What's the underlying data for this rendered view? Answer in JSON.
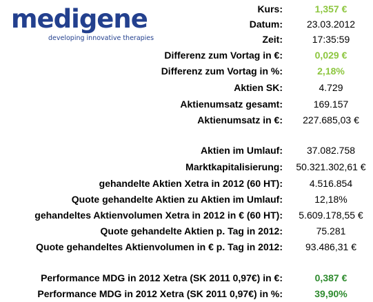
{
  "logo": {
    "name": "medigene",
    "tagline": "developing innovative therapies"
  },
  "colors": {
    "brand": "#23408e",
    "positive_light": "#8dc63f",
    "positive_dark": "#2e8b2e"
  },
  "rows": [
    {
      "label": "Kurs:",
      "value": "1,357 €"
    },
    {
      "label": "Datum:",
      "value": "23.03.2012"
    },
    {
      "label": "Zeit:",
      "value": "17:35:59"
    },
    {
      "label": "Differenz zum Vortag in €:",
      "value": "0,029 €"
    },
    {
      "label": "Differenz zum Vortag in %:",
      "value": "2,18%"
    },
    {
      "label": "Aktien SK:",
      "value": "4.729"
    },
    {
      "label": "Aktienumsatz gesamt:",
      "value": "169.157"
    },
    {
      "label": "Aktienumsatz in €:",
      "value": "227.685,03 €"
    },
    {
      "label": "Aktien im Umlauf:",
      "value": "37.082.758"
    },
    {
      "label": "Marktkapitalisierung:",
      "value": "50.321.302,61 €"
    },
    {
      "label": "gehandelte Aktien Xetra in 2012 (60 HT):",
      "value": "4.516.854"
    },
    {
      "label": "Quote gehandelte Aktien zu Aktien im Umlauf:",
      "value": "12,18%"
    },
    {
      "label": "gehandeltes Aktienvolumen Xetra in 2012 in € (60 HT):",
      "value": "5.609.178,55 €"
    },
    {
      "label": "Quote gehandelte Aktien p. Tag in 2012:",
      "value": "75.281"
    },
    {
      "label": "Quote gehandeltes Aktienvolumen in € p. Tag in 2012:",
      "value": "93.486,31 €"
    },
    {
      "label": "Performance MDG in 2012 Xetra (SK 2011 0,97€) in €:",
      "value": "0,387 €"
    },
    {
      "label": "Performance MDG in 2012 Xetra (SK 2011 0,97€) in %:",
      "value": "39,90%"
    }
  ]
}
